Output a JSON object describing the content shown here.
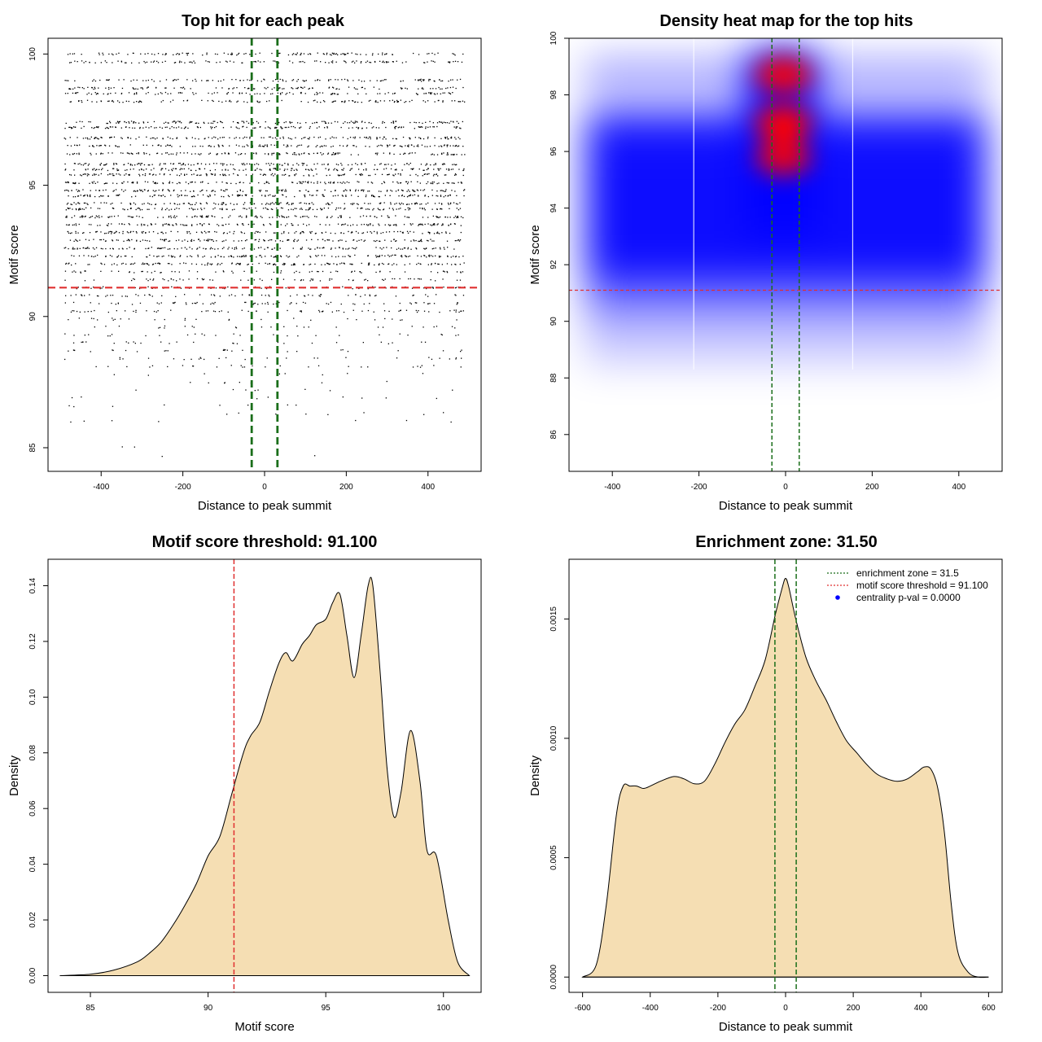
{
  "colors": {
    "fill_density": "#f5deb3",
    "threshold_line": "#e03030",
    "zone_line": "#1a6e1a",
    "heat_low": "#ffffff",
    "heat_mid": "#0000ff",
    "heat_high": "#ff0000",
    "points": "#000000",
    "legend_marker": "#0000ff"
  },
  "chart_data": [
    {
      "id": "scatter",
      "type": "scatter",
      "title": "Top hit for each peak",
      "xlabel": "Distance to peak summit",
      "ylabel": "Motif score",
      "xlim": [
        -530,
        530
      ],
      "ylim": [
        84.1,
        100.6
      ],
      "xticks": [
        -400,
        -200,
        0,
        200,
        400
      ],
      "yticks": [
        85,
        90,
        95,
        100
      ],
      "x_range": [
        -490,
        490
      ],
      "threshold": 91.1,
      "zone": [
        -31.5,
        31.5
      ],
      "score_levels": [
        100,
        99.7,
        99,
        98.7,
        98.5,
        98.2,
        97.4,
        97.2,
        96.8,
        96.5,
        96.2,
        95.8,
        95.6,
        95.4,
        95.1,
        94.8,
        94.6,
        94.3,
        94.1,
        93.8,
        93.5,
        93.2,
        92.9,
        92.6,
        92.3,
        92.0,
        91.7,
        91.4,
        91.1,
        90.8,
        90.5,
        90.2,
        89.9,
        89.6,
        89.3,
        89.0,
        88.7,
        88.4,
        88.1,
        87.8,
        87.5,
        87.2,
        86.9,
        86.6,
        86.3,
        86.0,
        85.0,
        84.7
      ]
    },
    {
      "id": "heatmap",
      "type": "heatmap",
      "title": "Density heat map for the top hits",
      "xlabel": "Distance to peak summit",
      "ylabel": "Motif score",
      "xlim": [
        -500,
        500
      ],
      "ylim": [
        84.7,
        100
      ],
      "xticks": [
        -400,
        -200,
        0,
        200,
        400
      ],
      "yticks": [
        86,
        88,
        90,
        92,
        94,
        96,
        98,
        100
      ],
      "threshold": 91.1,
      "zone": [
        -31.5,
        31.5
      ],
      "white_vlines": [
        -212,
        155
      ],
      "hotspots": [
        {
          "x": -5,
          "y": 98.7,
          "level": 0.95
        },
        {
          "x": -5,
          "y": 97.0,
          "level": 1.0
        },
        {
          "x": -5,
          "y": 95.8,
          "level": 0.9
        }
      ]
    },
    {
      "id": "score_density",
      "type": "area",
      "title": "Motif score threshold: 91.100",
      "xlabel": "Motif score",
      "ylabel": "Density",
      "xlim": [
        83.2,
        101.6
      ],
      "ylim": [
        -0.006,
        0.1495
      ],
      "xticks": [
        85,
        90,
        95,
        100
      ],
      "yticks": [
        0.0,
        0.02,
        0.04,
        0.06,
        0.08,
        0.1,
        0.12,
        0.14
      ],
      "ytick_labels": [
        "0.00",
        "0.02",
        "0.04",
        "0.06",
        "0.08",
        "0.10",
        "0.12",
        "0.14"
      ],
      "threshold": 91.1,
      "x": [
        83.7,
        85.0,
        86.0,
        87.0,
        87.5,
        88.0,
        88.5,
        89.0,
        89.5,
        90.0,
        90.5,
        91.0,
        91.5,
        91.8,
        92.2,
        92.6,
        93.0,
        93.3,
        93.6,
        94.0,
        94.3,
        94.6,
        95.0,
        95.3,
        95.6,
        95.9,
        96.2,
        96.5,
        96.8,
        97.0,
        97.3,
        97.6,
        97.9,
        98.2,
        98.6,
        99.0,
        99.3,
        99.7,
        100.2,
        100.6,
        101.1
      ],
      "y": [
        0.0,
        0.0005,
        0.002,
        0.005,
        0.008,
        0.012,
        0.018,
        0.025,
        0.033,
        0.043,
        0.05,
        0.065,
        0.08,
        0.086,
        0.091,
        0.102,
        0.112,
        0.116,
        0.113,
        0.119,
        0.122,
        0.126,
        0.128,
        0.134,
        0.137,
        0.122,
        0.107,
        0.122,
        0.14,
        0.14,
        0.11,
        0.075,
        0.057,
        0.066,
        0.088,
        0.07,
        0.045,
        0.043,
        0.02,
        0.005,
        0.0
      ]
    },
    {
      "id": "distance_density",
      "type": "area",
      "title": "Enrichment zone: 31.50",
      "xlabel": "Distance to peak summit",
      "ylabel": "Density",
      "xlim": [
        -640,
        640
      ],
      "ylim": [
        -6.4e-05,
        0.00175
      ],
      "xticks": [
        -600,
        -400,
        -200,
        0,
        200,
        400,
        600
      ],
      "yticks": [
        0.0,
        0.0005,
        0.001,
        0.0015
      ],
      "ytick_labels": [
        "0.0000",
        "0.0005",
        "0.0010",
        "0.0015"
      ],
      "zone": [
        -31.5,
        31.5
      ],
      "x": [
        -600,
        -560,
        -530,
        -500,
        -480,
        -460,
        -440,
        -420,
        -400,
        -370,
        -330,
        -300,
        -270,
        -240,
        -210,
        -180,
        -150,
        -120,
        -90,
        -60,
        -30,
        -10,
        0,
        10,
        30,
        60,
        90,
        120,
        150,
        180,
        210,
        240,
        270,
        300,
        330,
        360,
        390,
        410,
        430,
        450,
        470,
        490,
        510,
        540,
        570,
        600
      ],
      "y": [
        0.0,
        5e-05,
        0.0003,
        0.00068,
        0.0008,
        0.0008,
        0.0008,
        0.00079,
        0.0008,
        0.00082,
        0.00084,
        0.00083,
        0.00081,
        0.00082,
        0.00089,
        0.00098,
        0.00106,
        0.00112,
        0.00122,
        0.00133,
        0.00152,
        0.00163,
        0.00167,
        0.00163,
        0.0015,
        0.00134,
        0.00124,
        0.00116,
        0.00107,
        0.00099,
        0.00094,
        0.00089,
        0.00085,
        0.00083,
        0.00082,
        0.00083,
        0.00086,
        0.00088,
        0.00087,
        0.00079,
        0.0006,
        0.0003,
        0.0001,
        2e-05,
        0.0,
        0.0
      ],
      "legend": [
        {
          "label": "enrichment zone = 31.5",
          "style": "dotted",
          "color": "#1a6e1a"
        },
        {
          "label": "motif score threshold = 91.100",
          "style": "dotted",
          "color": "#e03030"
        },
        {
          "label": "centrality p-val = 0.0000",
          "style": "dot",
          "color": "#0000ff"
        }
      ],
      "legend_position": "top-right"
    }
  ]
}
